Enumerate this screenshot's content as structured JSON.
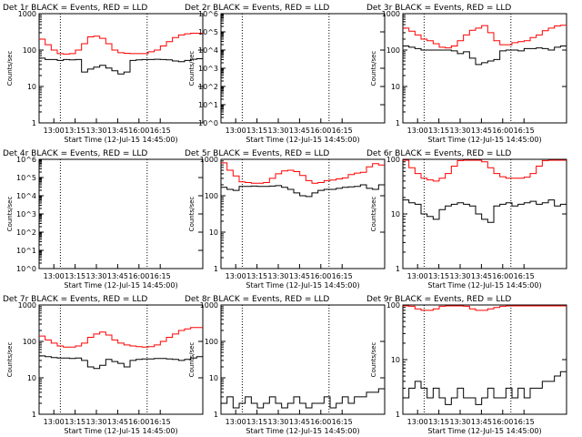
{
  "chart_data": [
    {
      "type": "line",
      "title": "Det 1r BLACK = Events, RED = LLD",
      "xlabel": "Start Time (12-Jul-15 14:45:00)",
      "ylabel": "Counts/sec",
      "scale": "log",
      "ylim": [
        1,
        1000
      ],
      "yticks": [
        "1",
        "10",
        "100",
        "1000"
      ],
      "xticks": [
        "13:00",
        "13:15",
        "13:30",
        "13:45",
        "16:00",
        "16:15"
      ],
      "series": [
        {
          "color": "#000000",
          "y": [
            60,
            55,
            55,
            52,
            55,
            54,
            55,
            25,
            30,
            34,
            38,
            32,
            27,
            22,
            25,
            52,
            54,
            55,
            55,
            56,
            55,
            54,
            50,
            48,
            52,
            56,
            58
          ]
        },
        {
          "color": "#ff0000",
          "y": [
            200,
            140,
            100,
            80,
            78,
            80,
            100,
            150,
            230,
            240,
            210,
            150,
            100,
            85,
            82,
            80,
            80,
            80,
            90,
            100,
            130,
            170,
            220,
            260,
            280,
            290,
            290
          ]
        }
      ]
    },
    {
      "type": "line",
      "title": "Det 2r BLACK = Events, RED = LLD",
      "xlabel": "Start Time (12-Jul-15 14:45:00)",
      "ylabel": "Counts/sec",
      "scale": "log",
      "ylim": [
        1,
        1000000
      ],
      "yticks": [
        "10^0",
        "10^1",
        "10^2",
        "10^3",
        "10^4",
        "10^5",
        "10^6"
      ],
      "xticks": [
        "13:00",
        "13:15",
        "13:30",
        "13:45",
        "16:00",
        "16:15"
      ],
      "series": []
    },
    {
      "type": "line",
      "title": "Det 3r BLACK = Events, RED = LLD",
      "xlabel": "Start Time (12-Jul-15 14:45:00)",
      "ylabel": "Counts/sec",
      "scale": "log",
      "ylim": [
        1,
        1000
      ],
      "yticks": [
        "1",
        "10",
        "100",
        "1000"
      ],
      "xticks": [
        "13:00",
        "13:15",
        "13:30",
        "13:45",
        "16:00",
        "16:15"
      ],
      "series": [
        {
          "color": "#000000",
          "y": [
            130,
            120,
            110,
            100,
            100,
            100,
            100,
            100,
            95,
            80,
            90,
            60,
            40,
            45,
            50,
            55,
            95,
            100,
            100,
            95,
            110,
            110,
            115,
            110,
            100,
            120,
            130
          ]
        },
        {
          "color": "#ff0000",
          "y": [
            400,
            330,
            260,
            200,
            180,
            150,
            120,
            115,
            130,
            180,
            260,
            350,
            400,
            470,
            300,
            180,
            140,
            140,
            160,
            170,
            180,
            220,
            260,
            340,
            400,
            460,
            480
          ]
        }
      ]
    },
    {
      "type": "line",
      "title": "Det 4r BLACK = Events, RED = LLD",
      "xlabel": "Start Time (12-Jul-15 14:45:00)",
      "ylabel": "Counts/sec",
      "scale": "log",
      "ylim": [
        1,
        1000000
      ],
      "yticks": [
        "10^0",
        "10^1",
        "10^2",
        "10^3",
        "10^4",
        "10^5",
        "10^6"
      ],
      "xticks": [
        "13:00",
        "13:15",
        "13:30",
        "13:45",
        "16:00",
        "16:15"
      ],
      "series": []
    },
    {
      "type": "line",
      "title": "Det 5r BLACK = Events, RED = LLD",
      "xlabel": "Start Time (12-Jul-15 14:45:00)",
      "ylabel": "Counts/sec",
      "scale": "log",
      "ylim": [
        1,
        1000
      ],
      "yticks": [
        "1",
        "10",
        "100",
        "1000"
      ],
      "xticks": [
        "13:00",
        "13:15",
        "13:30",
        "13:45",
        "16:00",
        "16:15"
      ],
      "series": [
        {
          "color": "#000000",
          "y": [
            170,
            150,
            140,
            180,
            180,
            185,
            180,
            180,
            185,
            190,
            170,
            150,
            120,
            100,
            95,
            120,
            140,
            150,
            150,
            160,
            170,
            175,
            180,
            200,
            160,
            150,
            200
          ]
        },
        {
          "color": "#ff0000",
          "y": [
            800,
            500,
            350,
            240,
            230,
            220,
            220,
            230,
            300,
            400,
            480,
            500,
            460,
            360,
            260,
            220,
            230,
            260,
            270,
            290,
            310,
            380,
            420,
            440,
            620,
            760,
            700
          ]
        }
      ]
    },
    {
      "type": "line",
      "title": "Det 6r BLACK = Events, RED = LLD",
      "xlabel": "Start Time (12-Jul-15 14:45:00)",
      "ylabel": "Counts/sec",
      "scale": "log",
      "ylim": [
        1,
        100
      ],
      "yticks": [
        "1",
        "10",
        "100"
      ],
      "xticks": [
        "13:00",
        "13:15",
        "13:30",
        "13:45",
        "16:00",
        "16:15"
      ],
      "series": [
        {
          "color": "#000000",
          "y": [
            18,
            16,
            15,
            10,
            9,
            8,
            12,
            14,
            15,
            16,
            15,
            14,
            10,
            8,
            7,
            14,
            15,
            16,
            14,
            15,
            16,
            17,
            15,
            16,
            18,
            14,
            15
          ]
        },
        {
          "color": "#ff0000",
          "y": [
            100,
            70,
            55,
            45,
            42,
            40,
            45,
            55,
            75,
            95,
            100,
            100,
            100,
            90,
            70,
            55,
            48,
            45,
            45,
            45,
            47,
            55,
            75,
            95,
            100,
            100,
            100
          ]
        }
      ]
    },
    {
      "type": "line",
      "title": "Det 7r BLACK = Events, RED = LLD",
      "xlabel": "Start Time (12-Jul-15 14:45:00)",
      "ylabel": "Counts/sec",
      "scale": "log",
      "ylim": [
        1,
        1000
      ],
      "yticks": [
        "1",
        "10",
        "100",
        "1000"
      ],
      "xticks": [
        "13:00",
        "13:15",
        "13:30",
        "13:45",
        "16:00",
        "16:15"
      ],
      "series": [
        {
          "color": "#000000",
          "y": [
            40,
            38,
            36,
            35,
            35,
            34,
            35,
            30,
            20,
            18,
            22,
            32,
            28,
            25,
            20,
            30,
            32,
            33,
            33,
            34,
            34,
            33,
            32,
            30,
            32,
            35,
            38
          ]
        },
        {
          "color": "#ff0000",
          "y": [
            140,
            110,
            90,
            75,
            70,
            70,
            75,
            90,
            130,
            160,
            180,
            150,
            110,
            90,
            80,
            75,
            72,
            70,
            72,
            80,
            100,
            130,
            160,
            200,
            220,
            240,
            240
          ]
        }
      ]
    },
    {
      "type": "line",
      "title": "Det 8r BLACK = Events, RED = LLD",
      "xlabel": "Start Time (12-Jul-15 14:45:00)",
      "ylabel": "Counts/sec",
      "scale": "log",
      "ylim": [
        1,
        1000
      ],
      "yticks": [
        "1",
        "10",
        "100",
        "1000"
      ],
      "xticks": [
        "13:00",
        "13:15",
        "13:30",
        "13:45",
        "16:00",
        "16:15"
      ],
      "series": [
        {
          "color": "#000000",
          "y": [
            2,
            3,
            1.5,
            2,
            3,
            2,
            1.5,
            2,
            3,
            2,
            1.5,
            2,
            3,
            2,
            1.5,
            2,
            2,
            3,
            1.5,
            2,
            3,
            2,
            3,
            3,
            4,
            4,
            5
          ]
        }
      ]
    },
    {
      "type": "line",
      "title": "Det 9r BLACK = Events, RED = LLD",
      "xlabel": "Start Time (12-Jul-15 14:45:00)",
      "ylabel": "Counts/sec",
      "scale": "log",
      "ylim": [
        1,
        100
      ],
      "yticks": [
        "1",
        "10",
        "100"
      ],
      "xticks": [
        "13:00",
        "13:15",
        "13:30",
        "13:45",
        "16:00",
        "16:15"
      ],
      "series": [
        {
          "color": "#000000",
          "y": [
            2,
            3,
            4,
            3,
            2,
            3,
            2,
            1.5,
            2,
            3,
            2,
            2,
            1.5,
            2,
            3,
            2,
            2,
            3,
            2,
            3,
            2,
            3,
            3,
            4,
            4,
            5,
            6
          ]
        },
        {
          "color": "#ff0000",
          "y": [
            100,
            95,
            85,
            80,
            80,
            85,
            95,
            100,
            100,
            100,
            95,
            85,
            80,
            80,
            85,
            90,
            95,
            100,
            100,
            100,
            100,
            100,
            100,
            100,
            100,
            100,
            100
          ]
        }
      ]
    }
  ]
}
